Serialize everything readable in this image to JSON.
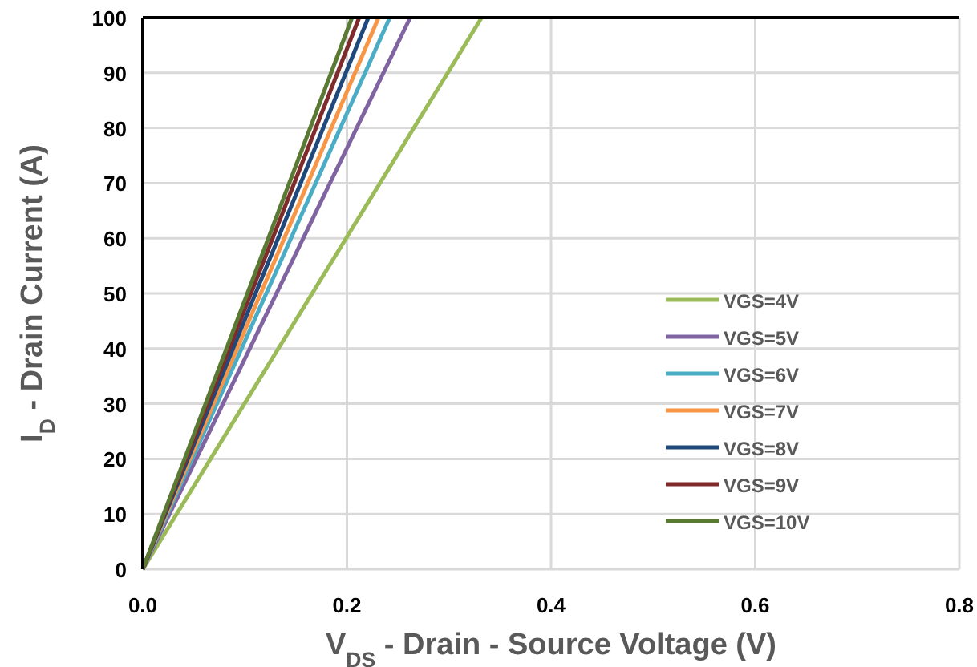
{
  "chart_data": {
    "type": "line",
    "xlabel": "V$_{DS}$ - Drain - Source Voltage (V)",
    "ylabel": "I$_{D}$ - Drain Current (A)",
    "xlim": [
      0,
      0.8
    ],
    "xticks": [
      {
        "value": 0,
        "label": "0.0"
      },
      {
        "value": 0.2,
        "label": "0.2"
      },
      {
        "value": 0.4,
        "label": "0.4"
      },
      {
        "value": 0.6,
        "label": "0.6"
      },
      {
        "value": 0.8,
        "label": "0.8"
      }
    ],
    "ylim": [
      0,
      100
    ],
    "yticks": [
      0,
      10,
      20,
      30,
      40,
      50,
      60,
      70,
      80,
      90,
      100
    ],
    "grid": true,
    "legend": "right",
    "marker": "none",
    "line_style": "solid",
    "series": [
      {
        "name": "VGS=4V",
        "color": "#9bbb59",
        "x": [
          0,
          0.332
        ],
        "values": [
          0,
          100
        ]
      },
      {
        "name": "VGS=5V",
        "color": "#8064a2",
        "x": [
          0,
          0.262
        ],
        "values": [
          0,
          100
        ]
      },
      {
        "name": "VGS=6V",
        "color": "#4bacc6",
        "x": [
          0,
          0.242
        ],
        "values": [
          0,
          100
        ]
      },
      {
        "name": "VGS=7V",
        "color": "#f79646",
        "x": [
          0,
          0.231
        ],
        "values": [
          0,
          100
        ]
      },
      {
        "name": "VGS=8V",
        "color": "#1f497d",
        "x": [
          0,
          0.221
        ],
        "values": [
          0,
          100
        ]
      },
      {
        "name": "VGS=9V",
        "color": "#7f2b2b",
        "x": [
          0,
          0.212
        ],
        "values": [
          0,
          100
        ]
      },
      {
        "name": "VGS=10V",
        "color": "#5a7a34",
        "x": [
          0,
          0.205
        ],
        "values": [
          0,
          100
        ]
      }
    ]
  }
}
